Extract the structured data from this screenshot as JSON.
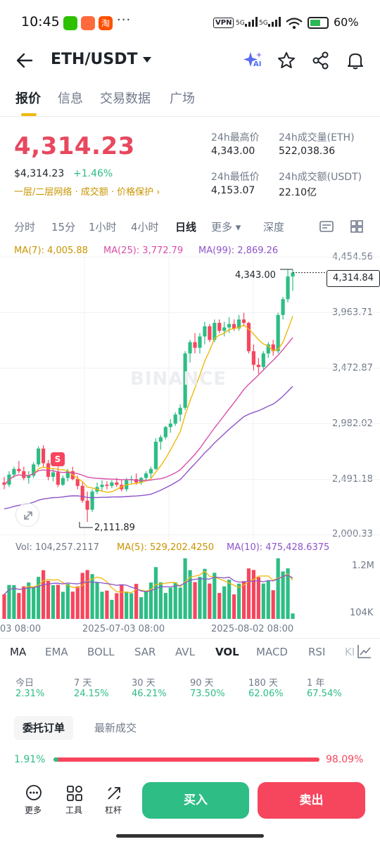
{
  "status_bar": {
    "time": "10:45",
    "dots": "···",
    "vpn": "VPN",
    "net1": "5G",
    "net2": "5G",
    "battery": "60%"
  },
  "header": {
    "title": "ETH/USDT",
    "icons": [
      "back-arrow-icon",
      "dropdown-caret-icon",
      "ai-sparkle-icon",
      "star-icon",
      "share-icon",
      "bell-icon"
    ],
    "ai_label": "AI"
  },
  "tabs": [
    {
      "label": "报价",
      "active": true
    },
    {
      "label": "信息"
    },
    {
      "label": "交易数据"
    },
    {
      "label": "广场"
    }
  ],
  "quote": {
    "price": "4,314.23",
    "usd": "$4,314.23",
    "change": "+1.46%",
    "links": "一层/二层网络 · 成交额 · 价格保护 ›",
    "high_label": "24h最高价",
    "high": "4,343.00",
    "low_label": "24h最低价",
    "low": "4,153.07",
    "vol_eth_label": "24h成交量(ETH)",
    "vol_eth": "522,038.36",
    "vol_usdt_label": "24h成交额(USDT)",
    "vol_usdt": "22.10亿"
  },
  "intervals": [
    {
      "label": "分时"
    },
    {
      "label": "15分"
    },
    {
      "label": "1小时"
    },
    {
      "label": "4小时"
    },
    {
      "label": "日线",
      "active": true
    },
    {
      "label": "更多 ▾"
    },
    {
      "label": "深度"
    }
  ],
  "ma_legend": {
    "ma7": "MA(7): 4,005.88",
    "ma25": "MA(25): 3,772.79",
    "ma99": "MA(99): 2,869.26"
  },
  "colors": {
    "up": "#2ebd85",
    "down": "#f6465d",
    "ma7": "#f0b90b",
    "ma25": "#d84ea8",
    "ma99": "#8d54c9",
    "accent": "#f0b90b"
  },
  "price_axis": [
    "4,454.56",
    "3,963.71",
    "3,472.87",
    "2,982.02",
    "2,491.18",
    "2,000.33"
  ],
  "chart": {
    "high_marker": "4,343.00",
    "low_marker": "2,111.89",
    "current_price_tag": "4,314.84",
    "watermark": "BINANCE",
    "sell_marker": "S"
  },
  "volume": {
    "vol": "Vol: 104,257.2117",
    "ma5": "MA(5): 529,202.4250",
    "ma10": "MA(10): 475,428.6375",
    "axis_top": "1.2M",
    "axis_bottom": "104K"
  },
  "date_axis": [
    "03 08:00",
    "2025-07-03 08:00",
    "2025-08-02 08:00"
  ],
  "indicator_tabs": [
    {
      "label": "MA"
    },
    {
      "label": "EMA"
    },
    {
      "label": "BOLL"
    },
    {
      "label": "SAR"
    },
    {
      "label": "AVL"
    },
    {
      "label": "VOL",
      "active": true
    },
    {
      "label": "MACD"
    },
    {
      "label": "RSI"
    },
    {
      "label": "KI"
    }
  ],
  "performance": [
    {
      "label": "今日",
      "value": "2.31%"
    },
    {
      "label": "7 天",
      "value": "24.15%"
    },
    {
      "label": "30 天",
      "value": "46.21%"
    },
    {
      "label": "90 天",
      "value": "73.50%"
    },
    {
      "label": "180 天",
      "value": "62.06%"
    },
    {
      "label": "1 年",
      "value": "67.54%"
    }
  ],
  "order_tabs": {
    "entrust": "委托订单",
    "latest": "最新成交"
  },
  "ratio": {
    "buy": "1.91%",
    "sell": "98.09%",
    "buy_fraction": 0.0191
  },
  "bottom": {
    "more": "更多",
    "tools": "工具",
    "leverage": "杠杆",
    "buy": "买入",
    "sell": "卖出"
  },
  "chart_data": {
    "type": "candlestick",
    "pair": "ETH/USDT",
    "interval": "日线",
    "ylim": [
      2000.33,
      4454.56
    ],
    "x_ticks": [
      "03 08:00",
      "2025-07-03 08:00",
      "2025-08-02 08:00"
    ],
    "candles": [
      [
        2460,
        2510,
        2400,
        2440
      ],
      [
        2440,
        2560,
        2420,
        2530
      ],
      [
        2530,
        2600,
        2500,
        2580
      ],
      [
        2580,
        2650,
        2540,
        2560
      ],
      [
        2560,
        2600,
        2480,
        2500
      ],
      [
        2500,
        2560,
        2450,
        2520
      ],
      [
        2520,
        2640,
        2500,
        2620
      ],
      [
        2620,
        2780,
        2600,
        2760
      ],
      [
        2760,
        2790,
        2600,
        2630
      ],
      [
        2630,
        2660,
        2480,
        2510
      ],
      [
        2510,
        2580,
        2470,
        2550
      ],
      [
        2550,
        2600,
        2420,
        2440
      ],
      [
        2440,
        2520,
        2430,
        2500
      ],
      [
        2500,
        2580,
        2470,
        2560
      ],
      [
        2560,
        2600,
        2480,
        2490
      ],
      [
        2490,
        2520,
        2400,
        2430
      ],
      [
        2430,
        2460,
        2280,
        2300
      ],
      [
        2300,
        2380,
        2112,
        2220
      ],
      [
        2220,
        2400,
        2200,
        2380
      ],
      [
        2380,
        2460,
        2360,
        2420
      ],
      [
        2420,
        2480,
        2380,
        2440
      ],
      [
        2440,
        2470,
        2400,
        2430
      ],
      [
        2430,
        2480,
        2410,
        2460
      ],
      [
        2460,
        2500,
        2420,
        2440
      ],
      [
        2440,
        2480,
        2380,
        2400
      ],
      [
        2400,
        2500,
        2380,
        2480
      ],
      [
        2480,
        2520,
        2450,
        2490
      ],
      [
        2490,
        2540,
        2440,
        2460
      ],
      [
        2460,
        2510,
        2440,
        2500
      ],
      [
        2500,
        2560,
        2480,
        2540
      ],
      [
        2540,
        2600,
        2500,
        2580
      ],
      [
        2580,
        2850,
        2570,
        2820
      ],
      [
        2820,
        2880,
        2750,
        2860
      ],
      [
        2860,
        2960,
        2840,
        2950
      ],
      [
        2950,
        3020,
        2900,
        2980
      ],
      [
        2980,
        3080,
        2960,
        3060
      ],
      [
        3060,
        3150,
        3000,
        3120
      ],
      [
        3120,
        3620,
        3100,
        3600
      ],
      [
        3600,
        3720,
        3520,
        3700
      ],
      [
        3700,
        3780,
        3600,
        3650
      ],
      [
        3650,
        3780,
        3600,
        3750
      ],
      [
        3750,
        3880,
        3680,
        3840
      ],
      [
        3840,
        3860,
        3700,
        3720
      ],
      [
        3720,
        3900,
        3700,
        3870
      ],
      [
        3870,
        3900,
        3780,
        3800
      ],
      [
        3800,
        3880,
        3750,
        3830
      ],
      [
        3830,
        3920,
        3780,
        3860
      ],
      [
        3860,
        3900,
        3800,
        3820
      ],
      [
        3820,
        3940,
        3800,
        3900
      ],
      [
        3900,
        3960,
        3840,
        3870
      ],
      [
        3870,
        3880,
        3600,
        3620
      ],
      [
        3620,
        3680,
        3450,
        3500
      ],
      [
        3500,
        3560,
        3420,
        3480
      ],
      [
        3480,
        3620,
        3460,
        3600
      ],
      [
        3600,
        3700,
        3560,
        3680
      ],
      [
        3680,
        3720,
        3580,
        3620
      ],
      [
        3620,
        3960,
        3600,
        3940
      ],
      [
        3940,
        4100,
        3900,
        4080
      ],
      [
        4080,
        4340,
        4050,
        4280
      ],
      [
        4280,
        4343,
        4153,
        4314
      ]
    ],
    "ma7_last": 4005.88,
    "ma25_last": 3772.79,
    "ma99_last": 2869.26,
    "volume_ylim": [
      0,
      1200000
    ],
    "volume_last": 104257.2117,
    "vol_ma5_last": 529202.425,
    "vol_ma10_last": 475428.6375
  }
}
